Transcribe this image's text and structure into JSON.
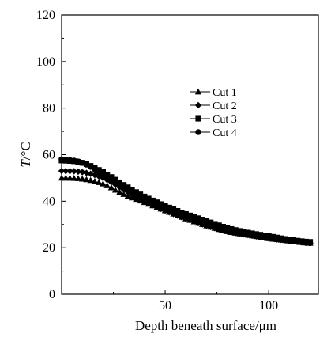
{
  "chart_data": {
    "type": "line",
    "xlabel": "Depth beneath surface/μm",
    "ylabel": "T/°C",
    "xlim": [
      0,
      124
    ],
    "ylim": [
      0,
      120
    ],
    "xticks": [
      50,
      100
    ],
    "yticks": [
      0,
      20,
      40,
      60,
      80,
      100,
      120
    ],
    "grid": false,
    "legend_position": "center-right",
    "series": [
      {
        "name": "Cut 1",
        "marker": "triangle",
        "x": [
          0,
          10,
          20,
          30,
          40,
          50,
          60,
          70,
          80,
          90,
          100,
          110,
          120
        ],
        "y": [
          50,
          49.6,
          47.5,
          43,
          39.5,
          36,
          32.5,
          29.5,
          27,
          25.5,
          24,
          23,
          22
        ]
      },
      {
        "name": "Cut 2",
        "marker": "diamond",
        "x": [
          0,
          10,
          20,
          30,
          40,
          50,
          60,
          70,
          80,
          90,
          100,
          110,
          120
        ],
        "y": [
          53,
          52.5,
          50,
          45,
          40,
          36,
          32.5,
          29.5,
          27,
          25.5,
          24,
          23,
          22
        ]
      },
      {
        "name": "Cut 3",
        "marker": "square",
        "x": [
          0,
          10,
          20,
          30,
          40,
          50,
          60,
          70,
          80,
          90,
          100,
          110,
          120
        ],
        "y": [
          57.5,
          56.5,
          52.5,
          47,
          42,
          38,
          34.5,
          31.5,
          28.5,
          26.5,
          25,
          23.5,
          22.5
        ]
      },
      {
        "name": "Cut 4",
        "marker": "circle",
        "x": [
          0,
          10,
          20,
          30,
          40,
          50,
          60,
          70,
          80,
          90,
          100,
          110,
          120
        ],
        "y": [
          58,
          56.5,
          51.5,
          45.5,
          40.5,
          36.5,
          33,
          30,
          27.5,
          26,
          24.5,
          23,
          22
        ]
      }
    ]
  }
}
